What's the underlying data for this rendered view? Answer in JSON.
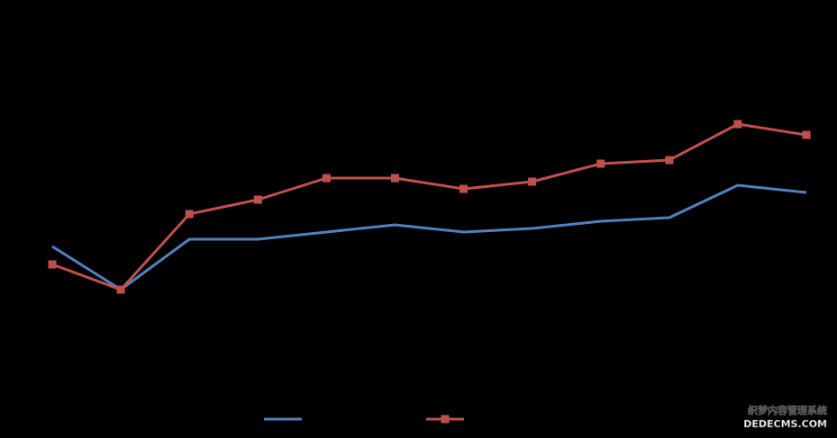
{
  "chart_data": {
    "type": "line",
    "categories": [
      null,
      null,
      null,
      null,
      null,
      null,
      null,
      null,
      null,
      null,
      null,
      null
    ],
    "series": [
      {
        "color": "#4f81bd",
        "marker": "none",
        "values": [
          39,
          27,
          41,
          41,
          43,
          45,
          43,
          44,
          46,
          47,
          56,
          54
        ]
      },
      {
        "color": "#c0504d",
        "marker": "square",
        "values": [
          34,
          27,
          48,
          52,
          58,
          58,
          55,
          57,
          62,
          63,
          73,
          70
        ]
      }
    ],
    "ylim": [
      0,
      100
    ],
    "grid": false,
    "legend": "bottom"
  },
  "watermark": [
    "织梦内容管理系统",
    "DEDECMS.COM"
  ]
}
